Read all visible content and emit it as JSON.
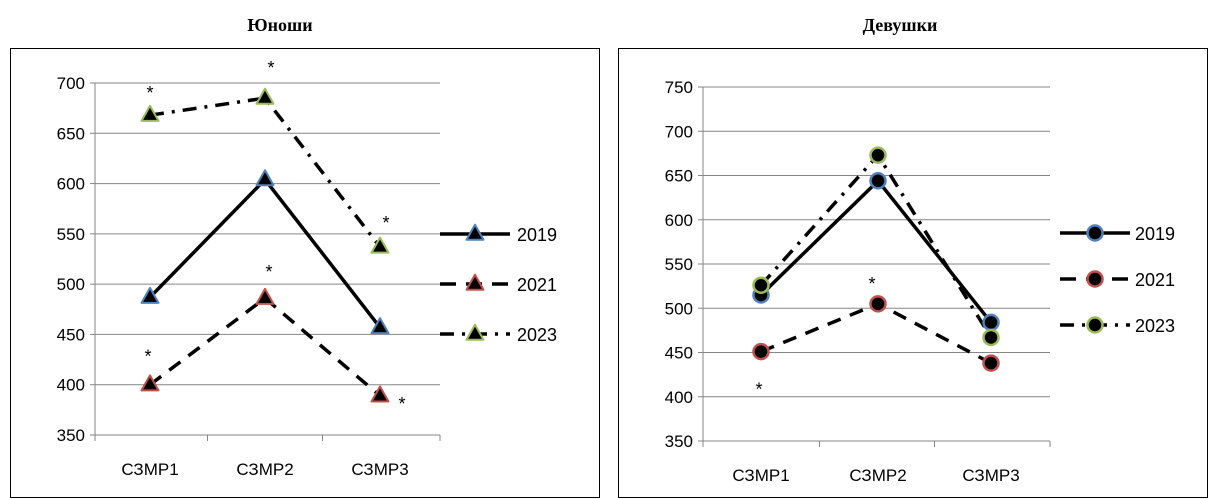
{
  "chart_data": [
    {
      "type": "line",
      "title": "Юноши",
      "categories": [
        "СЗМР1",
        "СЗМР2",
        "СЗМР3"
      ],
      "ylim": [
        350,
        700
      ],
      "yticks": [
        350,
        400,
        450,
        500,
        550,
        600,
        650,
        700
      ],
      "marker": "triangle",
      "legend": "right",
      "grid": true,
      "series": [
        {
          "name": "2019",
          "values": [
            487,
            604,
            457
          ],
          "color": "#4f81bd",
          "line": "solid"
        },
        {
          "name": "2021",
          "values": [
            400,
            486,
            389
          ],
          "color": "#c0504d",
          "line": "dashed"
        },
        {
          "name": "2023",
          "values": [
            668,
            685,
            537
          ],
          "color": "#9bbb59",
          "line": "dashdot"
        }
      ],
      "annotations": [
        {
          "text": "*",
          "category": "СЗМР1",
          "value": 668
        },
        {
          "text": "*",
          "category": "СЗМР2",
          "value": 685
        },
        {
          "text": "*",
          "category": "СЗМР3",
          "value": 537
        },
        {
          "text": "*",
          "category": "СЗМР1",
          "value": 400
        },
        {
          "text": "*",
          "category": "СЗМР2",
          "value": 486
        },
        {
          "text": "*",
          "category": "СЗМР3",
          "value": 389
        }
      ]
    },
    {
      "type": "line",
      "title": "Девушки",
      "categories": [
        "СЗМР1",
        "СЗМР2",
        "СЗМР3"
      ],
      "ylim": [
        350,
        750
      ],
      "yticks": [
        350,
        400,
        450,
        500,
        550,
        600,
        650,
        700,
        750
      ],
      "marker": "circle",
      "legend": "right",
      "grid": true,
      "series": [
        {
          "name": "2019",
          "values": [
            515,
            644,
            484
          ],
          "color": "#4f81bd",
          "line": "solid"
        },
        {
          "name": "2021",
          "values": [
            451,
            505,
            438
          ],
          "color": "#c0504d",
          "line": "dashed"
        },
        {
          "name": "2023",
          "values": [
            526,
            673,
            467
          ],
          "color": "#9bbb59",
          "line": "dashdot"
        }
      ],
      "annotations": [
        {
          "text": "*",
          "category": "СЗМР1",
          "value": 451
        },
        {
          "text": "*",
          "category": "СЗМР2",
          "value": 505
        }
      ]
    }
  ]
}
